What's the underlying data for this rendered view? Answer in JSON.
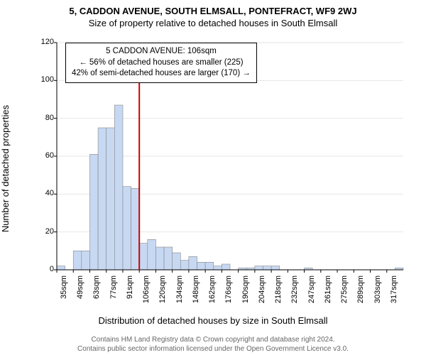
{
  "title": "5, CADDON AVENUE, SOUTH ELMSALL, PONTEFRACT, WF9 2WJ",
  "subtitle": "Size of property relative to detached houses in South Elmsall",
  "ylabel": "Number of detached properties",
  "xlabel": "Distribution of detached houses by size in South Elmsall",
  "infobox": {
    "line1": "5 CADDON AVENUE: 106sqm",
    "line2": "← 56% of detached houses are smaller (225)",
    "line3": "42% of semi-detached houses are larger (170) →"
  },
  "footer": {
    "line1": "Contains HM Land Registry data © Crown copyright and database right 2024.",
    "line2": "Contains public sector information licensed under the Open Government Licence v3.0."
  },
  "chart": {
    "type": "bar",
    "ylim": [
      0,
      120
    ],
    "yticks": [
      0,
      20,
      40,
      60,
      80,
      100,
      120
    ],
    "xtick_labels": [
      "35sqm",
      "49sqm",
      "63sqm",
      "77sqm",
      "91sqm",
      "106sqm",
      "120sqm",
      "134sqm",
      "148sqm",
      "162sqm",
      "176sqm",
      "190sqm",
      "204sqm",
      "218sqm",
      "232sqm",
      "247sqm",
      "261sqm",
      "275sqm",
      "289sqm",
      "303sqm",
      "317sqm"
    ],
    "values": [
      2,
      0,
      10,
      10,
      61,
      75,
      75,
      87,
      44,
      43,
      14,
      16,
      12,
      12,
      9,
      5,
      7,
      4,
      4,
      2,
      3,
      0,
      1,
      1,
      2,
      2,
      2,
      0,
      0,
      0,
      1,
      0,
      0,
      0,
      0,
      0,
      0,
      0,
      0,
      0,
      0,
      1
    ],
    "bar_fill": "#c7d8f2",
    "bar_stroke": "#888888",
    "marker_x_index": 10,
    "marker_color": "#cc0000",
    "grid_color": "#e6e6e6",
    "axis_color": "#000000",
    "background": "#ffffff",
    "title_fontsize": 13,
    "label_fontsize": 13,
    "tick_fontsize": 11
  }
}
